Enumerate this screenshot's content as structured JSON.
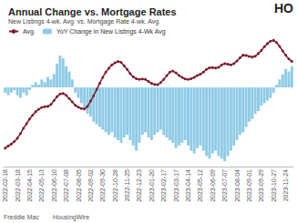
{
  "chart_data": {
    "type": "bar",
    "title": "Annual Change vs. Mortgage Rates",
    "subtitle": "New Listings 4-wk. Avg. vs. Mortgage Rate 4-wk. Avg.",
    "annotations": [
      "HO",
      "Freddie Mac",
      "HousingWire"
    ],
    "categories": [
      "2022-02-18",
      null,
      null,
      null,
      "2022-03-18",
      null,
      null,
      null,
      "2022-04-15",
      null,
      null,
      null,
      "2022-05-13",
      null,
      null,
      null,
      "2022-06-10",
      null,
      null,
      null,
      "2022-07-08",
      null,
      null,
      null,
      "2022-08-05",
      null,
      null,
      null,
      "2022-09-02",
      null,
      null,
      null,
      "2022-09-30",
      null,
      null,
      null,
      "2022-10-28",
      null,
      null,
      null,
      "2022-11-25",
      null,
      null,
      null,
      "2022-12-23",
      null,
      null,
      null,
      "2023-01-20",
      null,
      null,
      null,
      "2023-02-17",
      null,
      null,
      null,
      "2023-03-17",
      null,
      null,
      null,
      "2023-04-14",
      null,
      null,
      null,
      "2023-05-12",
      null,
      null,
      null,
      "2023-06-09",
      null,
      null,
      null,
      "2023-07-07",
      null,
      null,
      null,
      "2023-08-04",
      null,
      null,
      null,
      "2023-09-01",
      null,
      null,
      null,
      "2023-09-29",
      null,
      null,
      null,
      "2023-10-27",
      null,
      null,
      null,
      "2023-11-24",
      null,
      null
    ],
    "series": [
      {
        "name": "Avg.",
        "type": "line",
        "axis": "y2",
        "color": "#7b1e2e",
        "marker": "circle",
        "values": [
          3.7,
          3.78,
          3.85,
          3.95,
          4.07,
          4.25,
          4.45,
          4.62,
          4.8,
          4.95,
          5.08,
          5.17,
          5.24,
          5.27,
          5.28,
          5.35,
          5.5,
          5.65,
          5.75,
          5.77,
          5.7,
          5.58,
          5.45,
          5.32,
          5.25,
          5.2,
          5.18,
          5.28,
          5.48,
          5.68,
          5.92,
          6.15,
          6.38,
          6.58,
          6.72,
          6.85,
          6.93,
          6.98,
          6.95,
          6.82,
          6.68,
          6.52,
          6.4,
          6.33,
          6.3,
          6.32,
          6.3,
          6.22,
          6.15,
          6.11,
          6.1,
          6.18,
          6.3,
          6.45,
          6.58,
          6.62,
          6.55,
          6.45,
          6.38,
          6.32,
          6.3,
          6.33,
          6.38,
          6.45,
          6.5,
          6.58,
          6.68,
          6.74,
          6.75,
          6.73,
          6.76,
          6.85,
          6.9,
          6.88,
          6.85,
          6.9,
          7.0,
          7.12,
          7.22,
          7.21,
          7.17,
          7.15,
          7.18,
          7.28,
          7.4,
          7.54,
          7.66,
          7.75,
          7.78,
          7.7,
          7.55,
          7.38,
          7.22,
          7.08,
          6.98
        ]
      },
      {
        "name": "YoY Change in New Listings 4-Wk Avg",
        "type": "bar",
        "color": "#8fcbe6",
        "values": [
          -2,
          -3,
          -2,
          -1,
          -3,
          -4,
          -2,
          -3,
          -1,
          1,
          2,
          1,
          3,
          2,
          4,
          3,
          5,
          9,
          12,
          11,
          8,
          6,
          3,
          -2,
          -4,
          -6,
          -8,
          -10,
          -11,
          -13,
          -14,
          -15,
          -16,
          -17,
          -18,
          -17,
          -19,
          -20,
          -21,
          -19,
          -18,
          -20,
          -22,
          -24,
          -21,
          -18,
          -17,
          -19,
          -20,
          -18,
          -17,
          -16,
          -18,
          -19,
          -20,
          -21,
          -23,
          -22,
          -21,
          -20,
          -22,
          -24,
          -25,
          -23,
          -22,
          -24,
          -26,
          -27,
          -25,
          -24,
          -26,
          -27,
          -28,
          -26,
          -24,
          -22,
          -20,
          -18,
          -17,
          -15,
          -13,
          -12,
          -10,
          -9,
          -7,
          -6,
          -5,
          -4,
          -2,
          1,
          3,
          5,
          7,
          6,
          8
        ]
      }
    ],
    "ylim": [
      -30,
      20
    ],
    "yticks": [
      -30,
      -20,
      -10,
      0,
      10,
      20
    ],
    "y2lim": [
      3,
      8
    ],
    "y2ticks": [
      3,
      4,
      5,
      6,
      7,
      8
    ],
    "grid": false,
    "legend": "top-left",
    "tick_labels": "x"
  }
}
